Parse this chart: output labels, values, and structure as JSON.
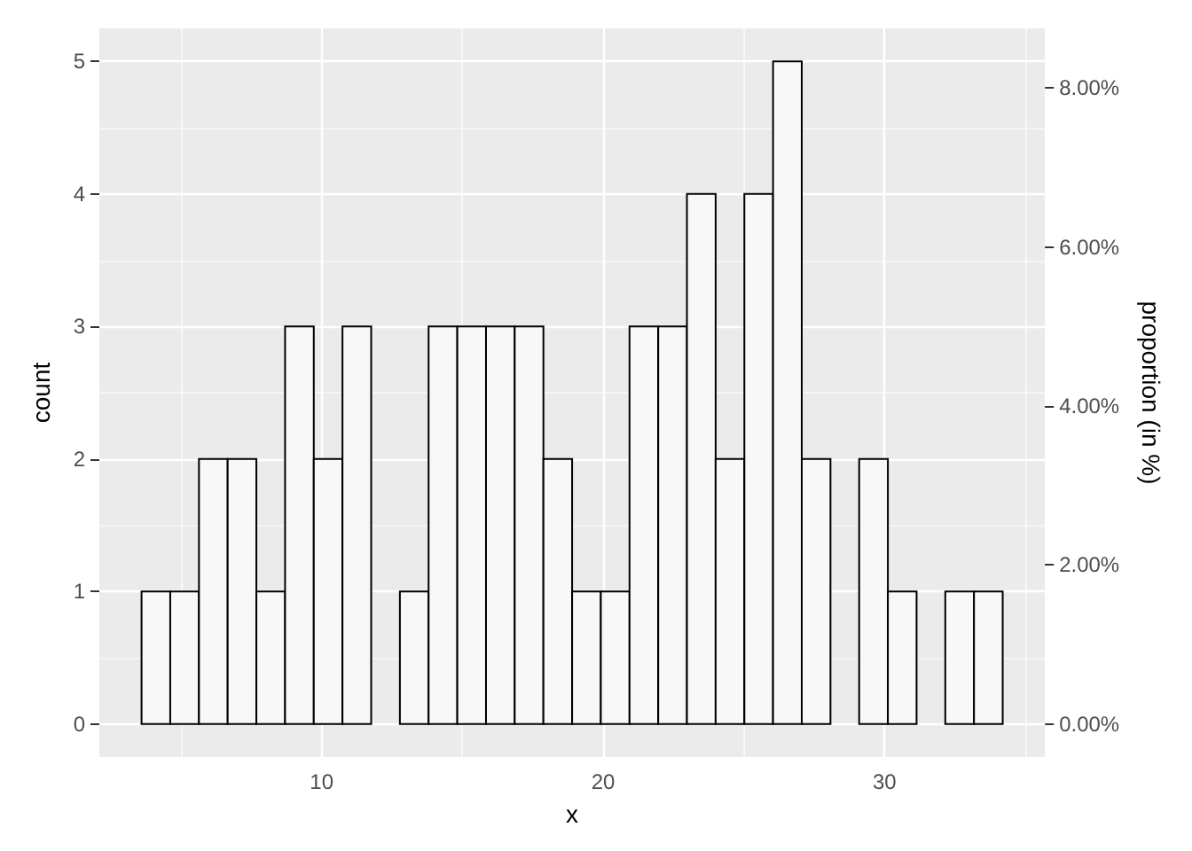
{
  "chart_data": {
    "type": "histogram",
    "xlabel": "x",
    "ylabel": "count",
    "y2label": "proportion (in %)",
    "bins": [
      3.6,
      4.62,
      5.64,
      6.66,
      7.68,
      8.7,
      9.72,
      10.74,
      11.76,
      12.78,
      13.8,
      14.82,
      15.84,
      16.86,
      17.88,
      18.9,
      19.92,
      20.94,
      21.96,
      22.98,
      24,
      25.02,
      26.04,
      27.06,
      28.08,
      29.1,
      30.12,
      31.14,
      32.16,
      33.18,
      34.2
    ],
    "values": [
      1,
      1,
      2,
      2,
      1,
      3,
      2,
      3,
      0,
      1,
      3,
      3,
      3,
      3,
      2,
      1,
      1,
      3,
      3,
      4,
      2,
      4,
      5,
      2,
      0,
      2,
      1,
      0,
      1,
      1
    ],
    "color": "#f8f8f8",
    "xlim": [
      2.1,
      35.7
    ],
    "xticks": [
      10,
      20,
      30
    ],
    "ylim": [
      -0.25,
      5.25
    ],
    "yticks": [
      0,
      1,
      2,
      3,
      4,
      5
    ],
    "y2lim": [
      -0.4167,
      8.75
    ],
    "y2ticks": [
      {
        "value": 0,
        "label": "0.00%"
      },
      {
        "value": 2,
        "label": "2.00%"
      },
      {
        "value": 4,
        "label": "4.00%"
      },
      {
        "value": 6,
        "label": "6.00%"
      },
      {
        "value": 8,
        "label": "8.00%"
      }
    ],
    "grid": true
  }
}
